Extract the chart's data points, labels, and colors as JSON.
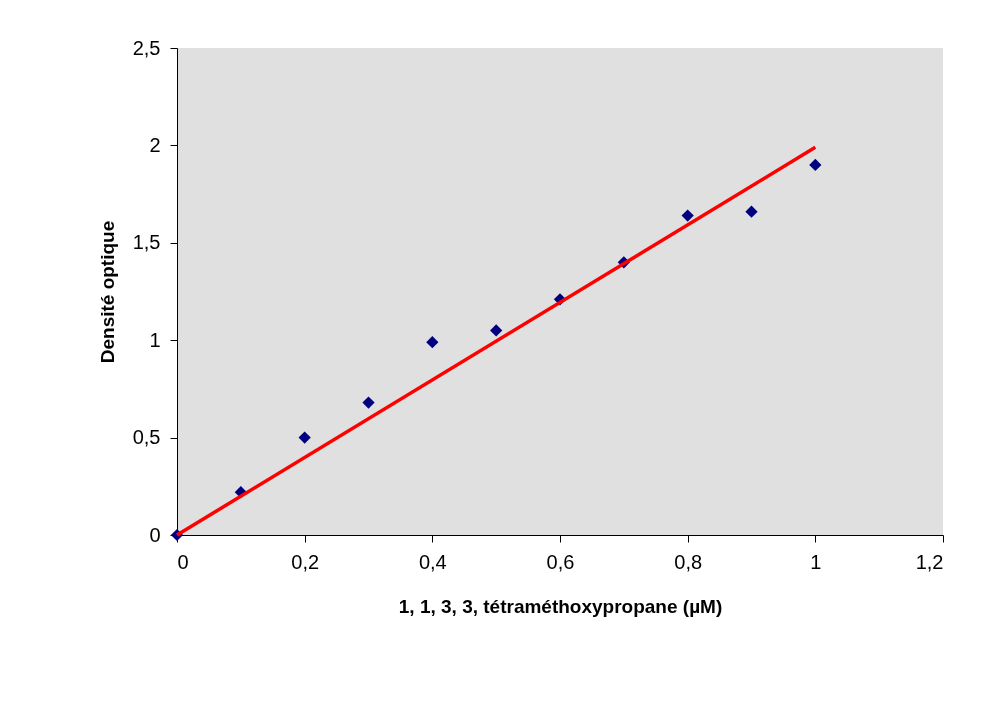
{
  "chart_data": {
    "type": "scatter",
    "xlabel": "1, 1, 3, 3, tétraméthoxypropane (µM)",
    "ylabel": "Densité optique",
    "xlim": [
      0,
      1.2
    ],
    "ylim": [
      0,
      2.5
    ],
    "xticks": [
      0,
      {
        "value": 0.2,
        "label": "0,2"
      },
      {
        "value": 0.4,
        "label": "0,4"
      },
      {
        "value": 0.6,
        "label": "0,6"
      },
      {
        "value": 0.8,
        "label": "0,8"
      },
      1,
      {
        "value": 1.2,
        "label": "1,2"
      }
    ],
    "yticks": [
      0,
      {
        "value": 0.5,
        "label": "0,5"
      },
      1,
      {
        "value": 1.5,
        "label": "1,5"
      },
      2,
      {
        "value": 2.5,
        "label": "2,5"
      }
    ],
    "grid": false,
    "series": [
      {
        "color": "#000080",
        "marker": "diamond",
        "x": [
          0,
          0.1,
          0.2,
          0.3,
          0.4,
          0.5,
          0.6,
          0.7,
          0.8,
          0.9,
          1.0
        ],
        "values": [
          0,
          0.22,
          0.5,
          0.68,
          0.99,
          1.05,
          1.21,
          1.4,
          1.64,
          1.66,
          1.9
        ]
      },
      {
        "type": "line",
        "color": "#ff0000",
        "line_style": "solid",
        "x": [
          0,
          1.0
        ],
        "values": [
          0,
          1.99
        ]
      }
    ]
  }
}
